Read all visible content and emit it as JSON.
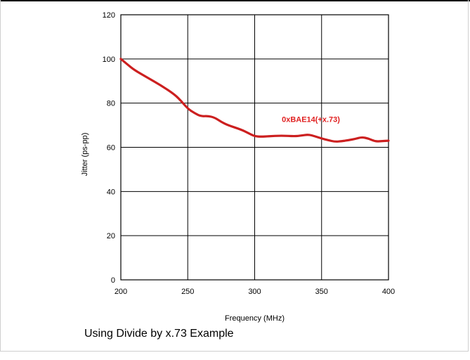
{
  "chart_data": {
    "type": "line",
    "xlabel": "Frequency (MHz)",
    "ylabel": "Jitter (ps-pp)",
    "xlim": [
      200,
      400
    ],
    "ylim": [
      0,
      120
    ],
    "x_ticks": [
      200,
      250,
      300,
      350,
      400
    ],
    "y_ticks": [
      0,
      20,
      40,
      60,
      80,
      100,
      120
    ],
    "grid": true,
    "line_color": "#cc1f1f",
    "series": [
      {
        "x": [
          200,
          205,
          210,
          220,
          230,
          240,
          245,
          250,
          255,
          260,
          265,
          270,
          275,
          280,
          290,
          295,
          300,
          305,
          310,
          320,
          330,
          335,
          340,
          345,
          350,
          355,
          360,
          365,
          370,
          375,
          380,
          385,
          390,
          395,
          400
        ],
        "y": [
          100,
          97.5,
          95,
          91.5,
          88,
          84,
          81,
          77.5,
          75.5,
          74,
          74.2,
          73.5,
          71.5,
          70,
          68,
          66.5,
          65,
          64.8,
          65,
          65.3,
          65,
          65.3,
          65.8,
          65,
          64,
          63.2,
          62.5,
          62.8,
          63.2,
          63.8,
          64.6,
          64,
          62.6,
          62.8,
          63
        ]
      }
    ],
    "annotations": [
      {
        "text": "0xBAE14(+x.73)",
        "x": 342,
        "y": 71.5,
        "color": "#e02020"
      }
    ]
  },
  "caption": "Using Divide by x.73 Example"
}
